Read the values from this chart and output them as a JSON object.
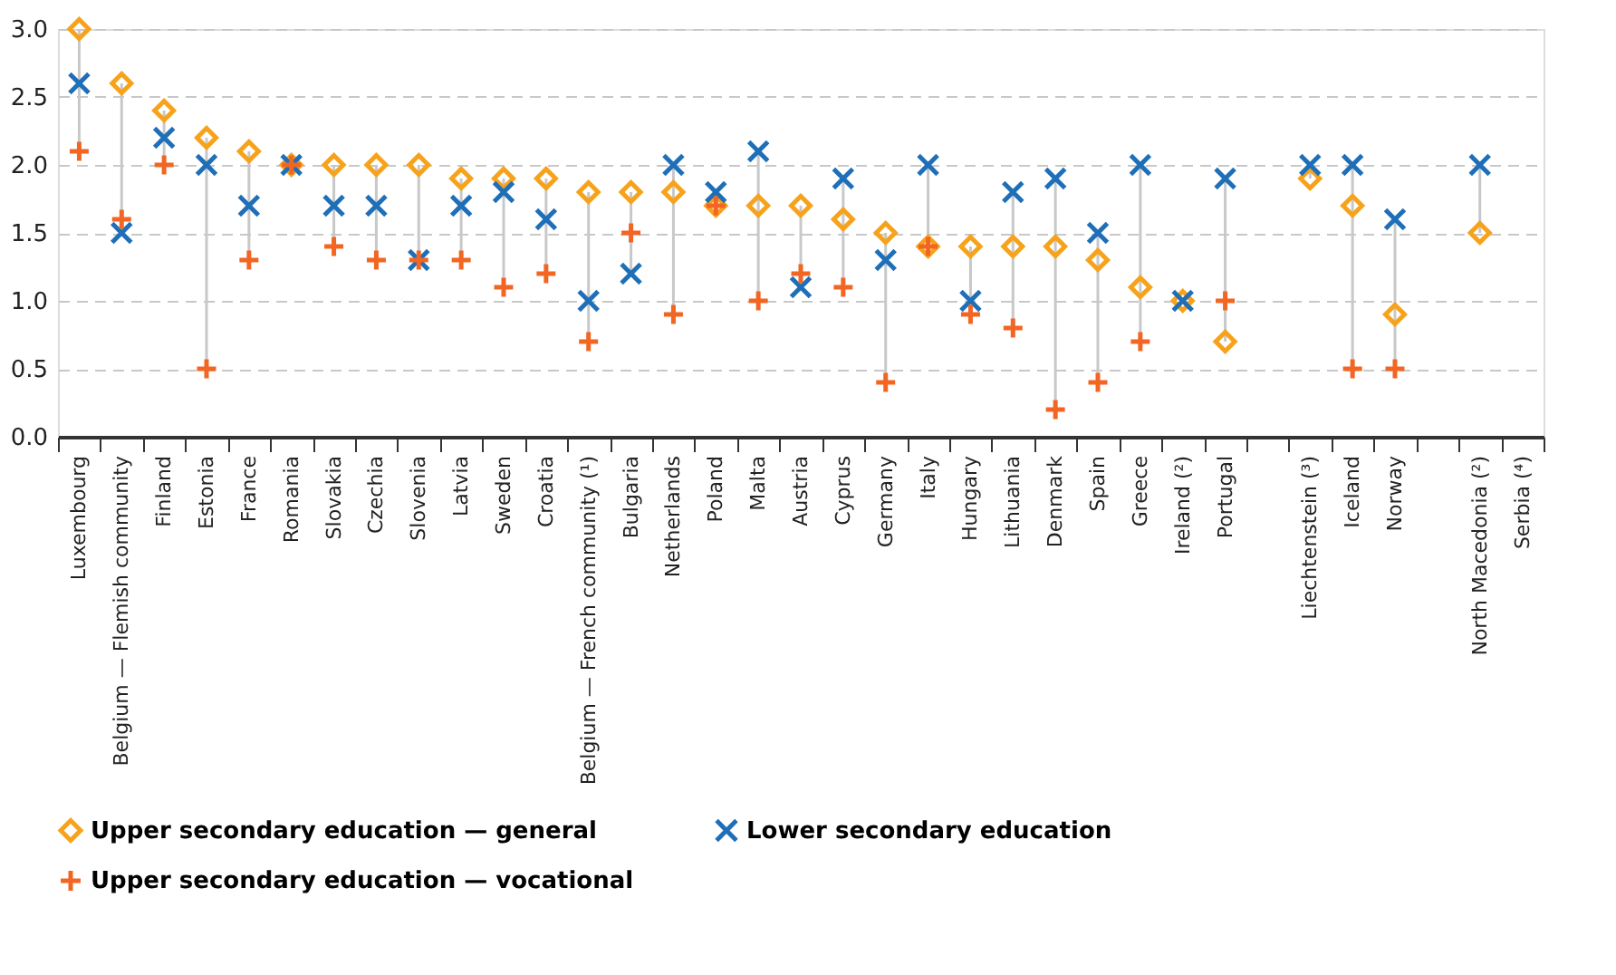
{
  "chart_data": {
    "type": "scatter",
    "categories": [
      "Luxembourg",
      "Belgium — Flemish community",
      "Finland",
      "Estonia",
      "France",
      "Romania",
      "Slovakia",
      "Czechia",
      "Slovenia",
      "Latvia",
      "Sweden",
      "Croatia",
      "Belgium — French community (¹)",
      "Bulgaria",
      "Netherlands",
      "Poland",
      "Malta",
      "Austria",
      "Cyprus",
      "Germany",
      "Italy",
      "Hungary",
      "Lithuania",
      "Denmark",
      "Spain",
      "Greece",
      "Ireland (²)",
      "Portugal",
      null,
      "Liechtenstein (³)",
      "Iceland",
      "Norway",
      null,
      "North Macedonia (²)",
      "Serbia (⁴)"
    ],
    "series": [
      {
        "name": "Upper secondary education — general",
        "color": "#f7a21b",
        "marker": "diamond",
        "values": [
          3.0,
          2.6,
          2.4,
          2.2,
          2.1,
          2.0,
          2.0,
          2.0,
          2.0,
          1.9,
          1.9,
          1.9,
          1.8,
          1.8,
          1.8,
          1.7,
          1.7,
          1.7,
          1.6,
          1.5,
          1.4,
          1.4,
          1.4,
          1.4,
          1.3,
          1.1,
          1.0,
          0.7,
          null,
          1.9,
          1.7,
          0.9,
          null,
          1.5,
          null
        ]
      },
      {
        "name": "Lower secondary education",
        "color": "#1f6fb8",
        "marker": "cross",
        "values": [
          2.6,
          1.5,
          2.2,
          2.0,
          1.7,
          2.0,
          1.7,
          1.7,
          1.3,
          1.7,
          1.8,
          1.6,
          1.0,
          1.2,
          2.0,
          1.8,
          2.1,
          1.1,
          1.9,
          1.3,
          2.0,
          1.0,
          1.8,
          1.9,
          1.5,
          2.0,
          1.0,
          1.9,
          null,
          2.0,
          2.0,
          1.6,
          null,
          2.0,
          null
        ]
      },
      {
        "name": "Upper secondary education — vocational",
        "color": "#f26522",
        "marker": "plus",
        "values": [
          2.1,
          1.6,
          2.0,
          0.5,
          1.3,
          2.0,
          1.4,
          1.3,
          1.3,
          1.3,
          1.1,
          1.2,
          0.7,
          1.5,
          0.9,
          1.7,
          1.0,
          1.2,
          1.1,
          0.4,
          1.4,
          0.9,
          0.8,
          0.2,
          0.4,
          0.7,
          null,
          1.0,
          null,
          null,
          0.5,
          0.5,
          null,
          null,
          null
        ]
      }
    ],
    "ylim": [
      0,
      3.0
    ],
    "yticks": [
      {
        "value": 0,
        "label": "0.0"
      },
      {
        "value": 0.5,
        "label": "0.5"
      },
      {
        "value": 1.0,
        "label": "1.0"
      },
      {
        "value": 1.5,
        "label": "1.5"
      },
      {
        "value": 2.0,
        "label": "2.0"
      },
      {
        "value": 2.5,
        "label": "2.5"
      },
      {
        "value": 3.0,
        "label": "3.0"
      }
    ],
    "grid": "y",
    "legend": "bottom"
  }
}
